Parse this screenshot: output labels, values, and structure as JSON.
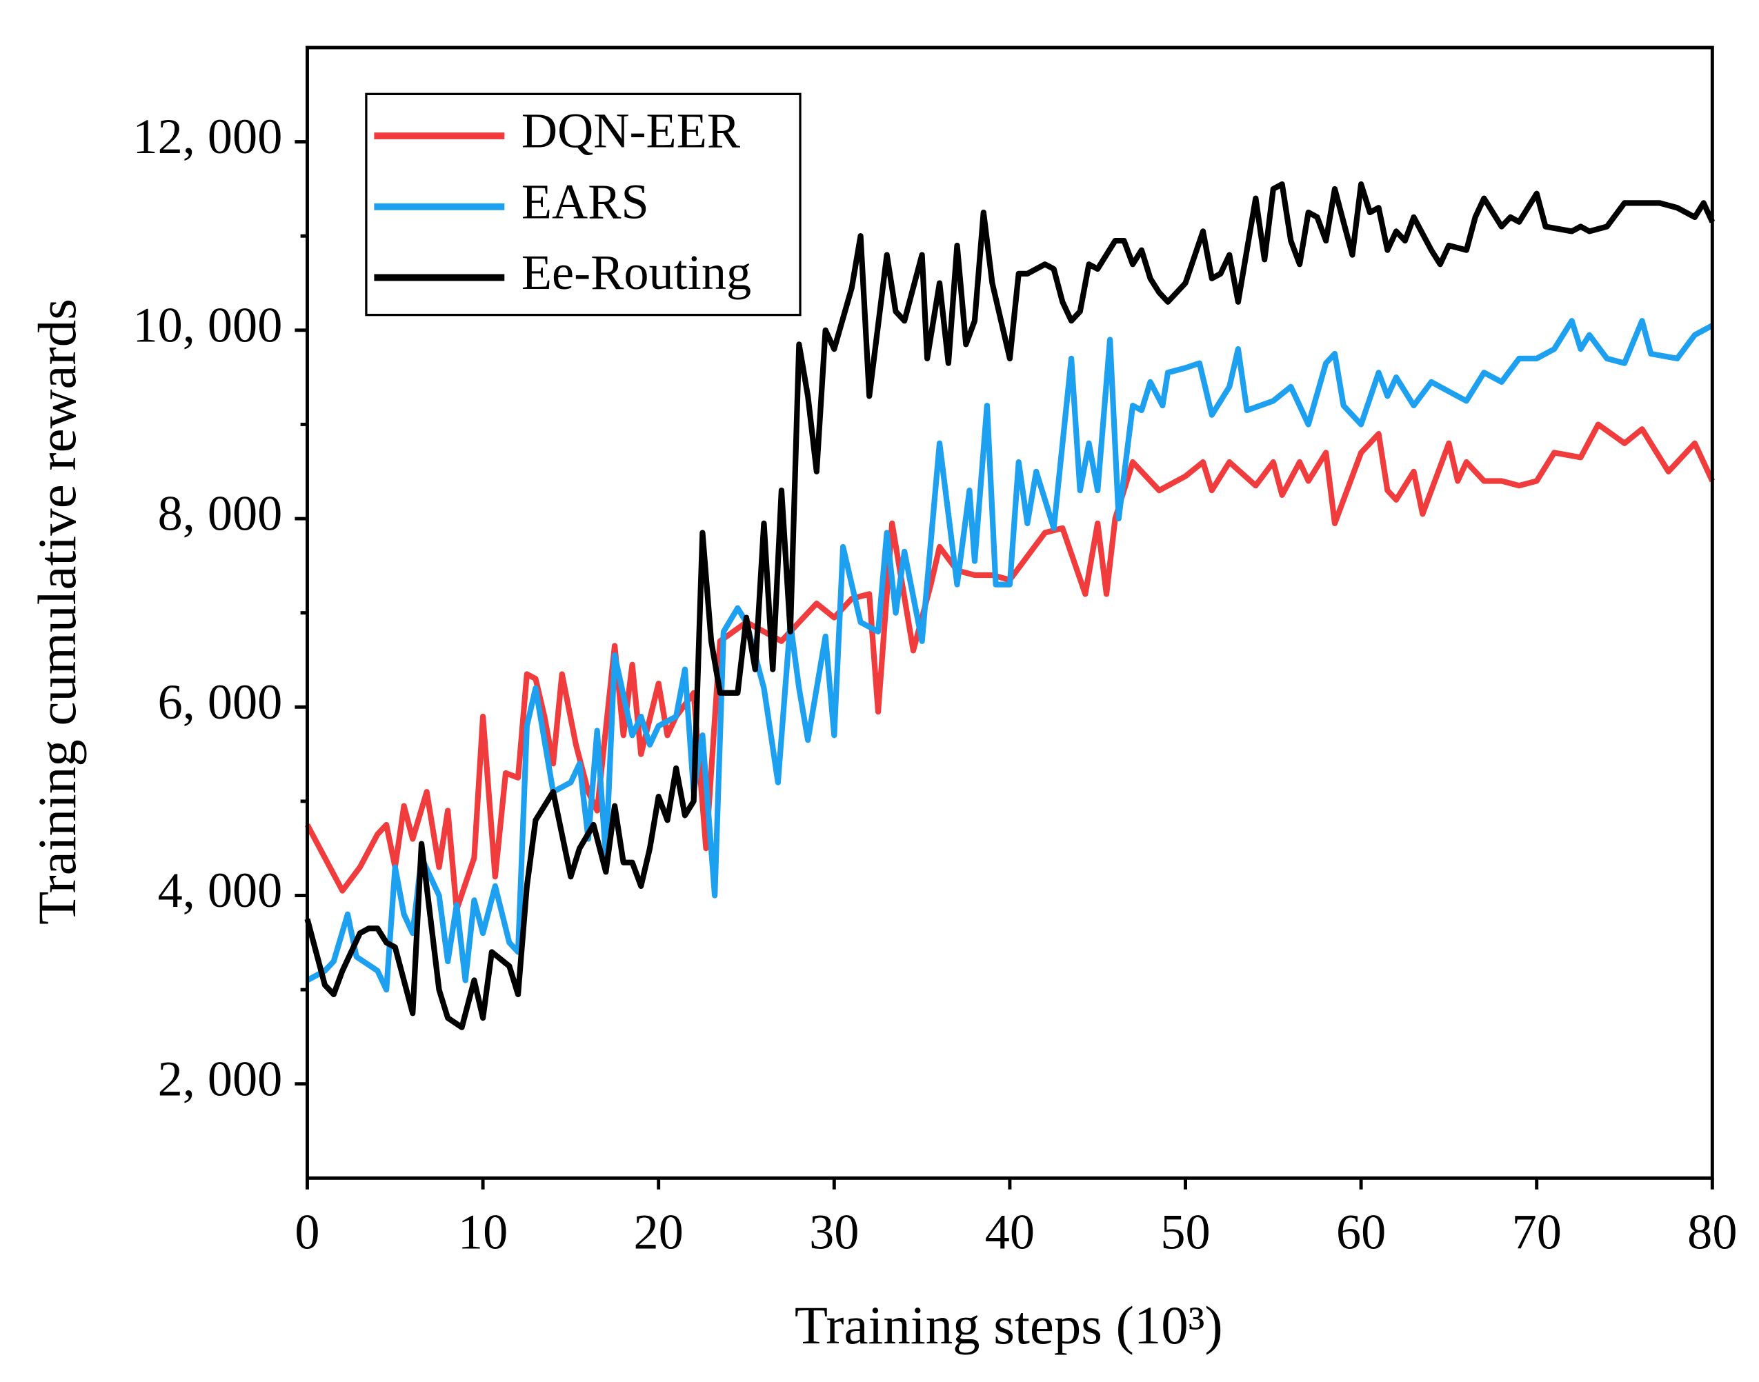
{
  "chart_data": {
    "type": "line",
    "x_label": "Training steps (10³)",
    "y_label": "Training cumulative rewards",
    "xlim": [
      0,
      80
    ],
    "ylim": [
      1000,
      13000
    ],
    "xticks": [
      0,
      10,
      20,
      30,
      40,
      50,
      60,
      70,
      80
    ],
    "yticks": [
      {
        "value": 2000,
        "label": "2, 000"
      },
      {
        "value": 4000,
        "label": "4, 000"
      },
      {
        "value": 6000,
        "label": "6, 000"
      },
      {
        "value": 8000,
        "label": "8, 000"
      },
      {
        "value": 10000,
        "label": "10, 000"
      },
      {
        "value": 12000,
        "label": "12, 000"
      }
    ],
    "yminor": [
      3000,
      5000,
      7000,
      9000,
      11000
    ],
    "legend": "top left",
    "series": [
      {
        "name": "DQN-EER",
        "color": "#f03c3c",
        "x": [
          0,
          2,
          3,
          4,
          4.5,
          5,
          5.5,
          6,
          6.8,
          7.5,
          8,
          8.5,
          9.5,
          10,
          10.7,
          11.3,
          12,
          12.5,
          13,
          13.5,
          14,
          14.5,
          15.3,
          16,
          16.5,
          17.5,
          18,
          18.5,
          19,
          20,
          20.5,
          21,
          22,
          22.7,
          23.5,
          25,
          26,
          27,
          29,
          30,
          31,
          32,
          32.5,
          33.3,
          34.5,
          35.5,
          36,
          37,
          38,
          39,
          40,
          41,
          42,
          43,
          44.3,
          45,
          45.5,
          46,
          47,
          48.5,
          50,
          51,
          51.5,
          52.5,
          54,
          55,
          55.5,
          56.5,
          57,
          58,
          58.5,
          60,
          61,
          61.5,
          62,
          63,
          63.5,
          65,
          65.5,
          66,
          67,
          68,
          69,
          70,
          71,
          72.5,
          73.5,
          75,
          76,
          77.5,
          79,
          80
        ],
        "values": [
          4750,
          4050,
          4300,
          4650,
          4750,
          4300,
          4950,
          4600,
          5100,
          4300,
          4900,
          3850,
          4400,
          5900,
          4200,
          5300,
          5250,
          6350,
          6300,
          5900,
          5400,
          6350,
          5600,
          5100,
          4900,
          6650,
          5700,
          6450,
          5500,
          6250,
          5700,
          5900,
          6150,
          4500,
          6700,
          6900,
          6800,
          6700,
          7100,
          6950,
          7150,
          7200,
          5950,
          7950,
          6600,
          7300,
          7700,
          7450,
          7400,
          7400,
          7350,
          7600,
          7850,
          7900,
          7200,
          7950,
          7200,
          8000,
          8600,
          8300,
          8450,
          8600,
          8300,
          8600,
          8350,
          8600,
          8250,
          8600,
          8400,
          8700,
          7950,
          8700,
          8900,
          8300,
          8200,
          8500,
          8050,
          8800,
          8400,
          8600,
          8400,
          8400,
          8350,
          8400,
          8700,
          8650,
          9000,
          8800,
          8950,
          8500,
          8800,
          8400
        ]
      },
      {
        "name": "EARS",
        "color": "#1ea0f0",
        "x": [
          0,
          1,
          1.5,
          2.3,
          2.8,
          4,
          4.5,
          5,
          5.5,
          6,
          6.5,
          7.5,
          8,
          8.5,
          9,
          9.5,
          10,
          10.7,
          11.5,
          12,
          12.5,
          13,
          14,
          15,
          15.5,
          16,
          16.5,
          17,
          17.5,
          18.5,
          19,
          19.5,
          20,
          21,
          21.5,
          22,
          22.5,
          23.2,
          23.7,
          24.5,
          25,
          26,
          26.8,
          27.5,
          28,
          28.5,
          29.5,
          30,
          30.5,
          31.5,
          32.5,
          33,
          33.5,
          34,
          35,
          36,
          37,
          37.7,
          38,
          38.7,
          39.2,
          40,
          40.5,
          41,
          41.5,
          42.5,
          43.5,
          44,
          44.5,
          45,
          45.7,
          46.2,
          47,
          47.5,
          48,
          48.7,
          49,
          50,
          50.8,
          51.5,
          52.5,
          53,
          53.5,
          55,
          56,
          57,
          58,
          58.5,
          59,
          60,
          61,
          61.5,
          62,
          63,
          64,
          65,
          66,
          67,
          68,
          69,
          70,
          71,
          72,
          72.5,
          73,
          74,
          75,
          76,
          76.5,
          78,
          79,
          80
        ],
        "values": [
          3100,
          3200,
          3300,
          3800,
          3350,
          3200,
          3000,
          4300,
          3800,
          3600,
          4400,
          4000,
          3300,
          3900,
          3100,
          3950,
          3600,
          4100,
          3500,
          3400,
          5800,
          6200,
          5100,
          5200,
          5400,
          4600,
          5750,
          4400,
          6550,
          5700,
          5900,
          5600,
          5800,
          5900,
          6400,
          5100,
          5700,
          4000,
          6800,
          7050,
          6900,
          6200,
          5200,
          6900,
          6200,
          5650,
          6750,
          5700,
          7700,
          6900,
          6800,
          7850,
          7000,
          7650,
          6700,
          8800,
          7300,
          8300,
          7550,
          9200,
          7300,
          7300,
          8600,
          7950,
          8500,
          7900,
          9700,
          8300,
          8800,
          8300,
          9900,
          8000,
          9200,
          9150,
          9450,
          9200,
          9550,
          9600,
          9650,
          9100,
          9400,
          9800,
          9150,
          9250,
          9400,
          9000,
          9650,
          9750,
          9200,
          9000,
          9550,
          9300,
          9500,
          9200,
          9450,
          9350,
          9250,
          9550,
          9450,
          9700,
          9700,
          9800,
          10100,
          9800,
          9950,
          9700,
          9650,
          10100,
          9750,
          9700,
          9950,
          10050
        ]
      },
      {
        "name": "Ee-Routing",
        "color": "#000000",
        "x": [
          0,
          1,
          1.5,
          2,
          3,
          3.5,
          4,
          4.5,
          5,
          6,
          6.5,
          7.5,
          8,
          8.8,
          9.5,
          10,
          10.5,
          11.5,
          12,
          12.5,
          13,
          14,
          15,
          15.5,
          16.3,
          17,
          17.5,
          18,
          18.5,
          19,
          19.5,
          20,
          20.5,
          21,
          21.5,
          22,
          22.5,
          23,
          23.5,
          24.5,
          25,
          25.5,
          26,
          26.5,
          27,
          27.5,
          28,
          28.5,
          29,
          29.5,
          30,
          31,
          31.5,
          32,
          33,
          33.5,
          34,
          35,
          35.3,
          36,
          36.5,
          37,
          37.5,
          38,
          38.5,
          39,
          40,
          40.5,
          41,
          42,
          42.5,
          43,
          43.5,
          44,
          44.5,
          45,
          46,
          46.5,
          47,
          47.5,
          48,
          48.5,
          49,
          50,
          51,
          51.5,
          52,
          52.5,
          53,
          54,
          54.5,
          55,
          55.5,
          56,
          56.5,
          57,
          57.5,
          58,
          58.5,
          59,
          59.5,
          60,
          60.5,
          61,
          61.5,
          62,
          62.5,
          63,
          64,
          64.5,
          65,
          66,
          66.5,
          67,
          68,
          68.5,
          69,
          70,
          70.5,
          72,
          72.5,
          73,
          74,
          75,
          77,
          78,
          79,
          79.5,
          80
        ],
        "values": [
          3750,
          3050,
          2950,
          3200,
          3600,
          3650,
          3650,
          3500,
          3450,
          2750,
          4550,
          3000,
          2700,
          2600,
          3100,
          2700,
          3400,
          3250,
          2950,
          4100,
          4800,
          5100,
          4200,
          4500,
          4750,
          4250,
          4950,
          4350,
          4350,
          4100,
          4500,
          5050,
          4800,
          5350,
          4850,
          5000,
          7850,
          6700,
          6150,
          6150,
          6950,
          6400,
          7950,
          6400,
          8300,
          6800,
          9850,
          9300,
          8500,
          10000,
          9800,
          10450,
          11000,
          9300,
          10800,
          10200,
          10100,
          10800,
          9700,
          10500,
          9650,
          10900,
          9850,
          10100,
          11250,
          10500,
          9700,
          10600,
          10600,
          10700,
          10650,
          10300,
          10100,
          10200,
          10700,
          10650,
          10950,
          10950,
          10700,
          10850,
          10550,
          10400,
          10300,
          10500,
          11050,
          10550,
          10600,
          10800,
          10300,
          11400,
          10750,
          11500,
          11550,
          10950,
          10700,
          11250,
          11200,
          10950,
          11500,
          11150,
          10800,
          11550,
          11250,
          11300,
          10850,
          11050,
          10950,
          11200,
          10850,
          10700,
          10900,
          10850,
          11200,
          11400,
          11100,
          11200,
          11150,
          11450,
          11100,
          11050,
          11100,
          11050,
          11100,
          11350,
          11350,
          11300,
          11200,
          11350,
          11150
        ]
      }
    ]
  }
}
